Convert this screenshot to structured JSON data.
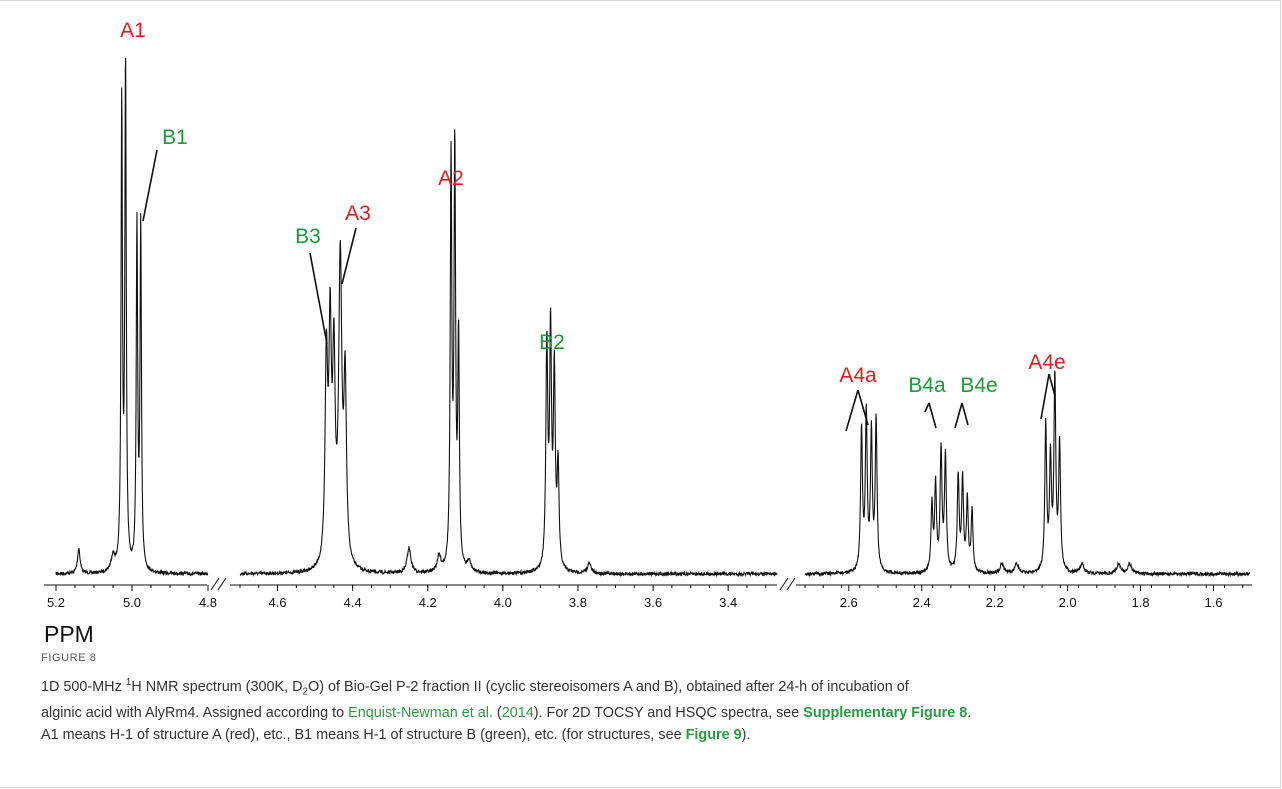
{
  "chart_data": {
    "type": "line",
    "xlabel": "PPM",
    "x_reversed": true,
    "broken_axis_segments": [
      {
        "from": 5.2,
        "to": 4.8,
        "ticks": [
          "5.2",
          "5.0",
          "4.8"
        ],
        "tick_values": [
          5.2,
          5.0,
          4.8
        ]
      },
      {
        "from": 4.7,
        "to": 3.27,
        "ticks": [
          "4.6",
          "4.4",
          "4.2",
          "4.0",
          "3.8",
          "3.6",
          "3.4"
        ],
        "tick_values": [
          4.6,
          4.4,
          4.2,
          4.0,
          3.8,
          3.6,
          3.4
        ]
      },
      {
        "from": 2.72,
        "to": 1.5,
        "ticks": [
          "2.6",
          "2.4",
          "2.2",
          "2.0",
          "1.8",
          "1.6"
        ],
        "tick_values": [
          2.6,
          2.4,
          2.2,
          2.0,
          1.8,
          1.6
        ]
      }
    ],
    "peaks": [
      {
        "ppm": 5.14,
        "height": 0.05,
        "width": 0.004
      },
      {
        "ppm": 5.05,
        "height": 0.03,
        "width": 0.006
      },
      {
        "ppm": 5.027,
        "height": 0.92,
        "width": 0.0022
      },
      {
        "ppm": 5.017,
        "height": 1.0,
        "width": 0.0022
      },
      {
        "ppm": 4.987,
        "height": 0.68,
        "width": 0.0022
      },
      {
        "ppm": 4.977,
        "height": 0.68,
        "width": 0.0022
      },
      {
        "ppm": 4.47,
        "height": 0.4,
        "width": 0.004
      },
      {
        "ppm": 4.46,
        "height": 0.44,
        "width": 0.004
      },
      {
        "ppm": 4.45,
        "height": 0.38,
        "width": 0.004
      },
      {
        "ppm": 4.433,
        "height": 0.6,
        "width": 0.005
      },
      {
        "ppm": 4.42,
        "height": 0.35,
        "width": 0.004
      },
      {
        "ppm": 4.25,
        "height": 0.05,
        "width": 0.006
      },
      {
        "ppm": 4.17,
        "height": 0.03,
        "width": 0.006
      },
      {
        "ppm": 4.138,
        "height": 0.8,
        "width": 0.0025
      },
      {
        "ppm": 4.128,
        "height": 0.82,
        "width": 0.0025
      },
      {
        "ppm": 4.118,
        "height": 0.45,
        "width": 0.0025
      },
      {
        "ppm": 4.09,
        "height": 0.02,
        "width": 0.006
      },
      {
        "ppm": 3.883,
        "height": 0.44,
        "width": 0.003
      },
      {
        "ppm": 3.873,
        "height": 0.46,
        "width": 0.003
      },
      {
        "ppm": 3.863,
        "height": 0.38,
        "width": 0.003
      },
      {
        "ppm": 3.853,
        "height": 0.2,
        "width": 0.003
      },
      {
        "ppm": 3.77,
        "height": 0.02,
        "width": 0.006
      },
      {
        "ppm": 2.565,
        "height": 0.28,
        "width": 0.003
      },
      {
        "ppm": 2.552,
        "height": 0.31,
        "width": 0.003
      },
      {
        "ppm": 2.538,
        "height": 0.27,
        "width": 0.003
      },
      {
        "ppm": 2.525,
        "height": 0.3,
        "width": 0.003
      },
      {
        "ppm": 2.372,
        "height": 0.13,
        "width": 0.003
      },
      {
        "ppm": 2.362,
        "height": 0.17,
        "width": 0.003
      },
      {
        "ppm": 2.347,
        "height": 0.24,
        "width": 0.003
      },
      {
        "ppm": 2.335,
        "height": 0.23,
        "width": 0.003
      },
      {
        "ppm": 2.3,
        "height": 0.19,
        "width": 0.003
      },
      {
        "ppm": 2.288,
        "height": 0.18,
        "width": 0.003
      },
      {
        "ppm": 2.275,
        "height": 0.14,
        "width": 0.003
      },
      {
        "ppm": 2.262,
        "height": 0.12,
        "width": 0.003
      },
      {
        "ppm": 2.18,
        "height": 0.02,
        "width": 0.006
      },
      {
        "ppm": 2.14,
        "height": 0.02,
        "width": 0.006
      },
      {
        "ppm": 2.06,
        "height": 0.29,
        "width": 0.003
      },
      {
        "ppm": 2.047,
        "height": 0.22,
        "width": 0.003
      },
      {
        "ppm": 2.035,
        "height": 0.38,
        "width": 0.003
      },
      {
        "ppm": 2.022,
        "height": 0.25,
        "width": 0.003
      },
      {
        "ppm": 1.96,
        "height": 0.02,
        "width": 0.006
      },
      {
        "ppm": 1.86,
        "height": 0.02,
        "width": 0.006
      },
      {
        "ppm": 1.83,
        "height": 0.02,
        "width": 0.006
      }
    ],
    "annotations": [
      {
        "label": "A1",
        "color": "#e02020",
        "ppm": 5.02
      },
      {
        "label": "B1",
        "color": "#1f9a3a",
        "ppm": 4.98
      },
      {
        "label": "B3",
        "color": "#1f9a3a",
        "ppm": 4.48
      },
      {
        "label": "A3",
        "color": "#e02020",
        "ppm": 4.43
      },
      {
        "label": "A2",
        "color": "#e02020",
        "ppm": 4.13
      },
      {
        "label": "B2",
        "color": "#1f9a3a",
        "ppm": 3.87
      },
      {
        "label": "A4a",
        "color": "#e02020",
        "ppm": 2.545
      },
      {
        "label": "B4a",
        "color": "#1f9a3a",
        "ppm": 2.355
      },
      {
        "label": "B4e",
        "color": "#1f9a3a",
        "ppm": 2.28
      },
      {
        "label": "A4e",
        "color": "#e02020",
        "ppm": 2.04
      }
    ]
  },
  "caption": {
    "figure_label": "FIGURE 8",
    "line1_a": "1D 500-MHz ",
    "line1_sup": "1",
    "line1_b": "H NMR spectrum (300K, D",
    "line1_sub": "2",
    "line1_c": "O) of Bio-Gel P-2 fraction II (cyclic stereoisomers A and B), obtained after 24-h of incubation of",
    "line2_a": "alginic acid with AlyRm4. Assigned according to ",
    "ref_authors": "Enquist-Newman et al.",
    "ref_open": " (",
    "ref_year": "2014",
    "ref_close": "). For 2D TOCSY and HSQC spectra, see ",
    "supp_link": "Supplementary Figure 8",
    "line2_end": ".",
    "line3_a": "A1 means H-1 of structure A (red), etc., B1 means H-1 of structure B (green), etc. (for structures, see ",
    "fig_link": "Figure 9",
    "line3_end": ")."
  }
}
